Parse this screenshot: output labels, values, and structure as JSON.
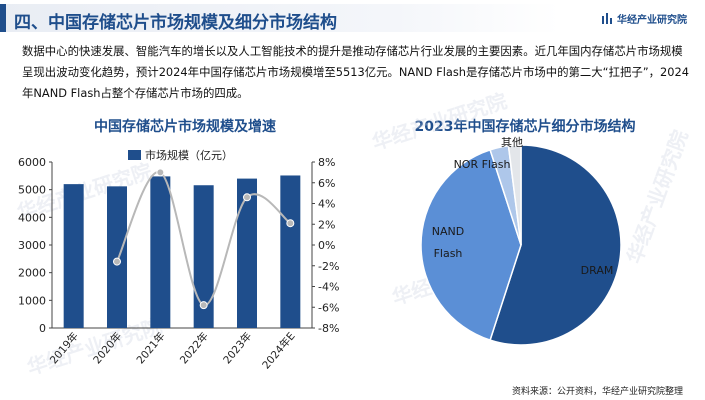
{
  "header": {
    "title": "四、中国存储芯片市场规模及细分市场结构",
    "brand": "华经产业研究院",
    "accent_color": "#1f4e8c"
  },
  "intro": "数据中心的快速发展、智能汽车的增长以及人工智能技术的提升是推动存储芯片行业发展的主要因素。近几年国内存储芯片市场规模呈现出波动变化趋势，预计2024年中国存储芯片市场规模增至5513亿元。NAND Flash是存储芯片市场中的第二大“扛把子”，2024年NAND Flash占整个存储芯片市场的四成。",
  "watermark": "华经产业研究院",
  "source": "资料来源：公开资料，华经产业研究院整理",
  "chart_data": [
    {
      "type": "bar",
      "title": "中国存储芯片市场规模及增速",
      "categories": [
        "2019年",
        "2020年",
        "2021年",
        "2022年",
        "2023年",
        "2024年E"
      ],
      "series": [
        {
          "name": "市场规模（亿元）",
          "type": "bar",
          "axis": "left",
          "color": "#1f4e8c",
          "values": [
            5200,
            5120,
            5480,
            5160,
            5400,
            5513
          ]
        },
        {
          "name": "",
          "type": "line",
          "axis": "right",
          "color": "#b8b8b8",
          "values": [
            null,
            -1.6,
            7.0,
            -5.8,
            4.6,
            2.1
          ]
        }
      ],
      "y_left": {
        "min": 0,
        "max": 6000,
        "ticks": [
          "0",
          "1000",
          "2000",
          "3000",
          "4000",
          "5000",
          "6000"
        ]
      },
      "y_right": {
        "min": -8,
        "max": 8,
        "ticks": [
          "-8%",
          "-6%",
          "-4%",
          "-2%",
          "0%",
          "2%",
          "4%",
          "6%",
          "8%"
        ]
      },
      "legend": {
        "label": "市场规模（亿元）",
        "placement": "top-center"
      },
      "grid": false
    },
    {
      "type": "pie",
      "title": "2023年中国存储芯片细分市场结构",
      "slices": [
        {
          "label": "DRAM",
          "value": 55,
          "color": "#1f4e8c",
          "label_color": "#1a1a1a"
        },
        {
          "label": "NAND Flash",
          "value": 40,
          "color": "#5b8fd6",
          "label_color": "#1a1a1a"
        },
        {
          "label": "NOR Flash",
          "value": 3,
          "color": "#aec7ea",
          "label_color": "#1a1a1a"
        },
        {
          "label": "其他",
          "value": 2,
          "color": "#e3e6ea",
          "label_color": "#1a1a1a"
        }
      ]
    }
  ]
}
